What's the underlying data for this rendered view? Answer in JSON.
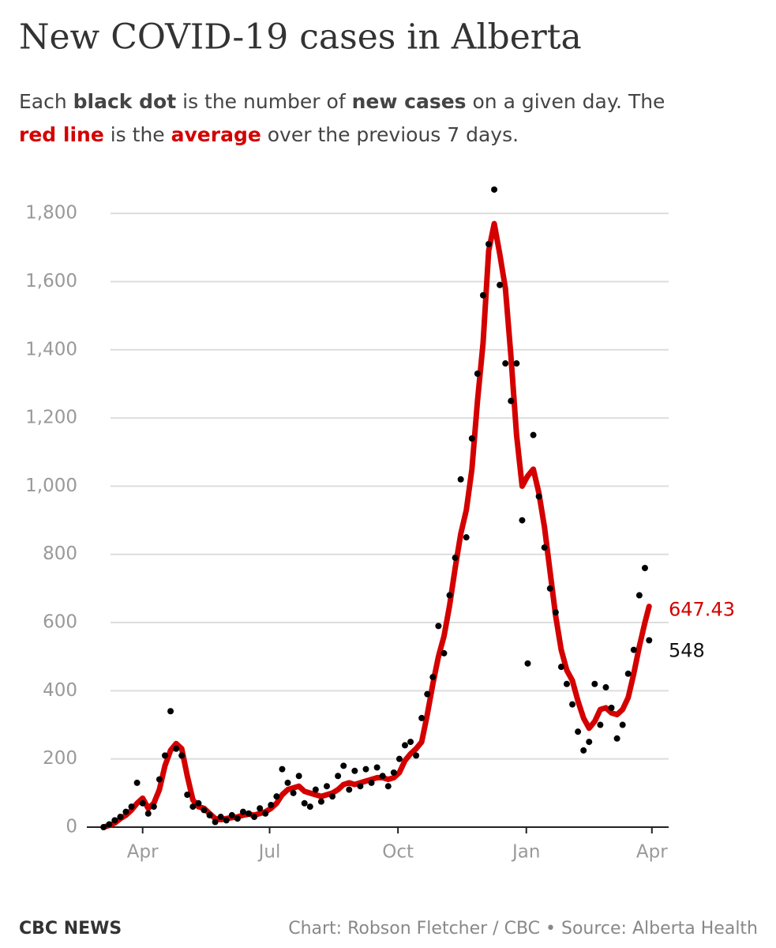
{
  "chart_data": {
    "type": "line",
    "title": "New COVID-19 cases in Alberta",
    "subtitle": [
      {
        "text": "Each "
      },
      {
        "text": "black dot",
        "style": "bold"
      },
      {
        "text": " is the number of "
      },
      {
        "text": "new cases",
        "style": "bold"
      },
      {
        "text": " on a given day. The "
      },
      {
        "text": "red line",
        "style": "red"
      },
      {
        "text": " is the "
      },
      {
        "text": "average",
        "style": "red"
      },
      {
        "text": " over the previous 7 days."
      }
    ],
    "x": [
      -28,
      -24,
      -20,
      -16,
      -12,
      -8,
      -4,
      0,
      4,
      8,
      12,
      16,
      20,
      24,
      28,
      32,
      36,
      40,
      44,
      48,
      52,
      56,
      60,
      64,
      68,
      72,
      76,
      80,
      84,
      88,
      92,
      96,
      100,
      104,
      108,
      112,
      116,
      120,
      124,
      128,
      132,
      136,
      140,
      144,
      148,
      152,
      156,
      160,
      164,
      168,
      172,
      176,
      180,
      184,
      188,
      192,
      196,
      200,
      204,
      208,
      212,
      216,
      220,
      224,
      228,
      232,
      236,
      240,
      244,
      248,
      252,
      256,
      260,
      264,
      268,
      272,
      276,
      280,
      284,
      288,
      292,
      296,
      300,
      304,
      308,
      312,
      316,
      320,
      324,
      328,
      332,
      336,
      340,
      344,
      348,
      352,
      356,
      360,
      363
    ],
    "series": [
      {
        "color": "#000000",
        "marker": "dot",
        "values": [
          0,
          8,
          20,
          30,
          45,
          60,
          130,
          70,
          40,
          60,
          140,
          210,
          340,
          230,
          210,
          95,
          60,
          70,
          50,
          35,
          15,
          30,
          20,
          35,
          25,
          45,
          40,
          30,
          55,
          40,
          65,
          90,
          170,
          130,
          100,
          150,
          70,
          60,
          110,
          75,
          120,
          90,
          150,
          180,
          110,
          165,
          120,
          170,
          130,
          175,
          150,
          120,
          160,
          200,
          240,
          250,
          210,
          320,
          390,
          440,
          590,
          510,
          680,
          790,
          1020,
          850,
          1140,
          1330,
          1560,
          1710,
          1870,
          1590,
          1360,
          1250,
          1360,
          900,
          480,
          1150,
          970,
          820,
          700,
          630,
          470,
          420,
          360,
          280,
          225,
          250,
          420,
          300,
          410,
          350,
          260,
          300,
          450,
          520,
          680,
          760,
          548
        ]
      },
      {
        "color": "#d40000",
        "values": [
          0,
          5,
          12,
          25,
          35,
          50,
          70,
          85,
          55,
          70,
          110,
          180,
          225,
          245,
          230,
          150,
          80,
          60,
          55,
          40,
          25,
          22,
          25,
          28,
          30,
          35,
          38,
          35,
          40,
          45,
          55,
          70,
          95,
          110,
          115,
          120,
          105,
          100,
          95,
          90,
          95,
          100,
          110,
          125,
          130,
          125,
          130,
          135,
          140,
          145,
          145,
          140,
          145,
          160,
          195,
          215,
          230,
          250,
          330,
          420,
          500,
          560,
          650,
          760,
          860,
          930,
          1050,
          1250,
          1420,
          1690,
          1770,
          1680,
          1580,
          1380,
          1150,
          1000,
          1030,
          1050,
          980,
          880,
          750,
          620,
          520,
          460,
          430,
          370,
          320,
          290,
          310,
          345,
          350,
          335,
          330,
          345,
          380,
          450,
          530,
          600,
          647.43
        ]
      }
    ],
    "xlim": [
      -40,
      377
    ],
    "xticks": [
      {
        "value": 0,
        "label": "Apr"
      },
      {
        "value": 91,
        "label": "Jul"
      },
      {
        "value": 183,
        "label": "Oct"
      },
      {
        "value": 275,
        "label": "Jan"
      },
      {
        "value": 365,
        "label": "Apr"
      }
    ],
    "ylim": [
      0,
      1900
    ],
    "yticks": [
      0,
      200,
      400,
      600,
      800,
      {
        "value": 1000,
        "label": "1,000"
      },
      {
        "value": 1200,
        "label": "1,200"
      },
      {
        "value": 1400,
        "label": "1,400"
      },
      {
        "value": 1600,
        "label": "1,600"
      },
      {
        "value": 1800,
        "label": "1,800"
      }
    ],
    "grid": true,
    "brand": "CBC NEWS",
    "source": "Chart: Robson Fletcher / CBC • Source: Alberta Health"
  }
}
